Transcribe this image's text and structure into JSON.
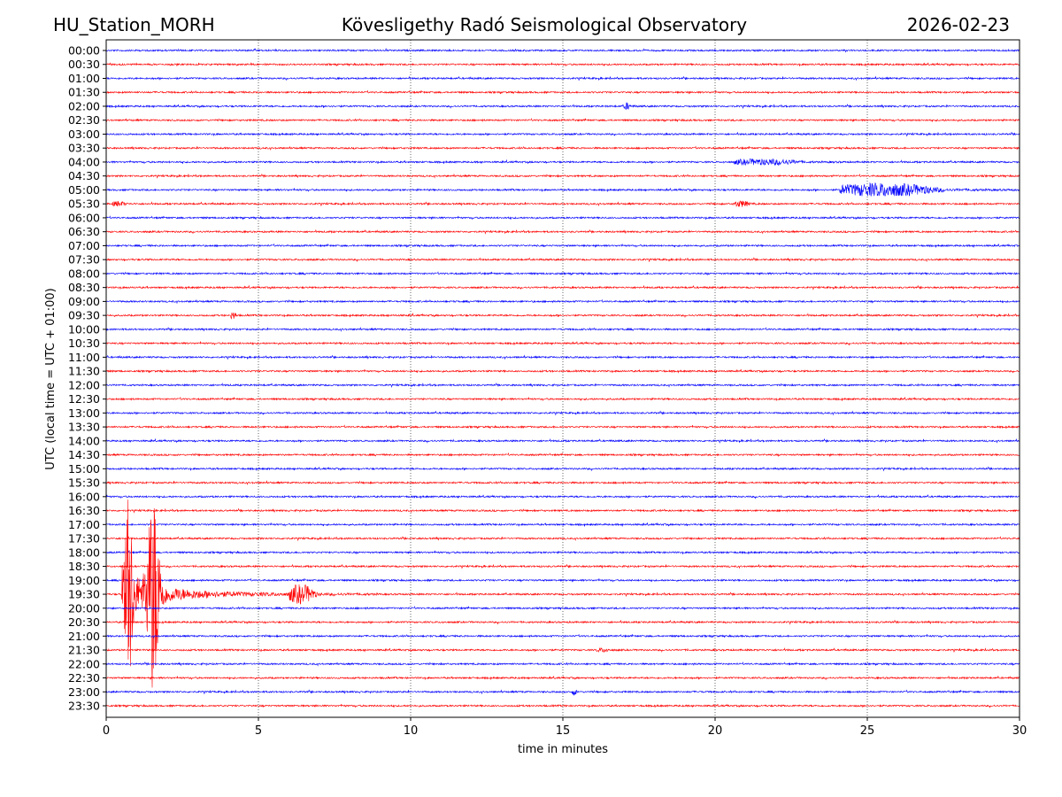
{
  "header": {
    "station": "HU_Station_MORH",
    "observatory": "Kövesligethy Radó Seismological Observatory",
    "date": "2026-02-23"
  },
  "chart_data": {
    "type": "line",
    "title": "Kövesligethy Radó Seismological Observatory",
    "xlabel": "time in minutes",
    "ylabel": "UTC (local time = UTC + 01:00)",
    "xlim": [
      0,
      30
    ],
    "xticks": [
      0,
      5,
      10,
      15,
      20,
      25,
      30
    ],
    "grid": "vertical dotted at x ticks",
    "row_labels": [
      "00:00",
      "00:30",
      "01:00",
      "01:30",
      "02:00",
      "02:30",
      "03:00",
      "03:30",
      "04:00",
      "04:30",
      "05:00",
      "05:30",
      "06:00",
      "06:30",
      "07:00",
      "07:30",
      "08:00",
      "08:30",
      "09:00",
      "09:30",
      "10:00",
      "10:30",
      "11:00",
      "11:30",
      "12:00",
      "12:30",
      "13:00",
      "13:30",
      "14:00",
      "14:30",
      "15:00",
      "15:30",
      "16:00",
      "16:30",
      "17:00",
      "17:30",
      "18:00",
      "18:30",
      "19:00",
      "19:30",
      "20:00",
      "20:30",
      "21:00",
      "21:30",
      "22:00",
      "22:30",
      "23:00",
      "23:30"
    ],
    "trace_colors": [
      "#0000ff",
      "#ff0000"
    ],
    "events": [
      {
        "row": "02:00",
        "start_min": 17.0,
        "end_min": 17.4,
        "amplitude": 0.3
      },
      {
        "row": "04:00",
        "start_min": 20.6,
        "end_min": 24.6,
        "amplitude": 0.25
      },
      {
        "row": "05:00",
        "start_min": 24.1,
        "end_min": 30.0,
        "amplitude": 0.6
      },
      {
        "row": "05:30",
        "start_min": 0.2,
        "end_min": 1.0,
        "amplitude": 0.2
      },
      {
        "row": "05:30",
        "start_min": 20.6,
        "end_min": 21.6,
        "amplitude": 0.25
      },
      {
        "row": "09:30",
        "start_min": 4.1,
        "end_min": 4.4,
        "amplitude": 0.35
      },
      {
        "row": "19:30",
        "start_min": 0.5,
        "end_min": 9.0,
        "amplitude": 7.0
      },
      {
        "row": "19:30",
        "start_min": 6.0,
        "end_min": 7.6,
        "amplitude": 0.9
      },
      {
        "row": "21:30",
        "start_min": 16.1,
        "end_min": 16.9,
        "amplitude": 0.15
      },
      {
        "row": "23:00",
        "start_min": 15.3,
        "end_min": 15.6,
        "amplitude": 0.25
      }
    ]
  }
}
